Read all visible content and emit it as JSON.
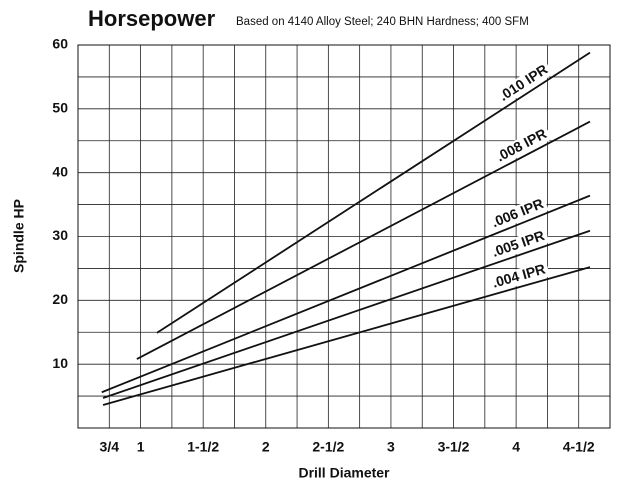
{
  "chart_data": {
    "type": "line",
    "title": "Horsepower",
    "subtitle": "Based on 4140 Alloy Steel; 240 BHN Hardness; 400 SFM",
    "x_label": "Drill Diameter",
    "y_label": "Spindle HP",
    "xlim": [
      0.5,
      4.75
    ],
    "ylim": [
      0,
      60
    ],
    "xticks": [
      {
        "value": 0.75,
        "label": "3/4"
      },
      1,
      {
        "value": 1.5,
        "label": "1-1/2"
      },
      2,
      {
        "value": 2.5,
        "label": "2-1/2"
      },
      3,
      {
        "value": 3.5,
        "label": "3-1/2"
      },
      4,
      {
        "value": 4.5,
        "label": "4-1/2"
      }
    ],
    "yticks": [
      10,
      20,
      30,
      40,
      50,
      60
    ],
    "minor_xticks": [
      0.5,
      1.25,
      1.75,
      2.25,
      2.75,
      3.25,
      3.75,
      4.25,
      4.75
    ],
    "minor_yticks": [
      0,
      5,
      15,
      25,
      35,
      45,
      55
    ],
    "grid": true,
    "series": [
      {
        "name": ".010 IPR",
        "color": "#111111",
        "x": [
          1.13,
          4.59
        ],
        "values": [
          14.9,
          58.8
        ]
      },
      {
        "name": ".008 IPR",
        "color": "#111111",
        "x": [
          0.97,
          4.59
        ],
        "values": [
          10.8,
          48.0
        ]
      },
      {
        "name": ".006 IPR",
        "color": "#111111",
        "x": [
          0.69,
          4.59
        ],
        "values": [
          5.6,
          36.4
        ]
      },
      {
        "name": ".005 IPR",
        "color": "#111111",
        "x": [
          0.7,
          4.59
        ],
        "values": [
          4.7,
          30.9
        ]
      },
      {
        "name": ".004 IPR",
        "color": "#111111",
        "x": [
          0.7,
          4.59
        ],
        "values": [
          3.6,
          25.2
        ]
      }
    ]
  }
}
